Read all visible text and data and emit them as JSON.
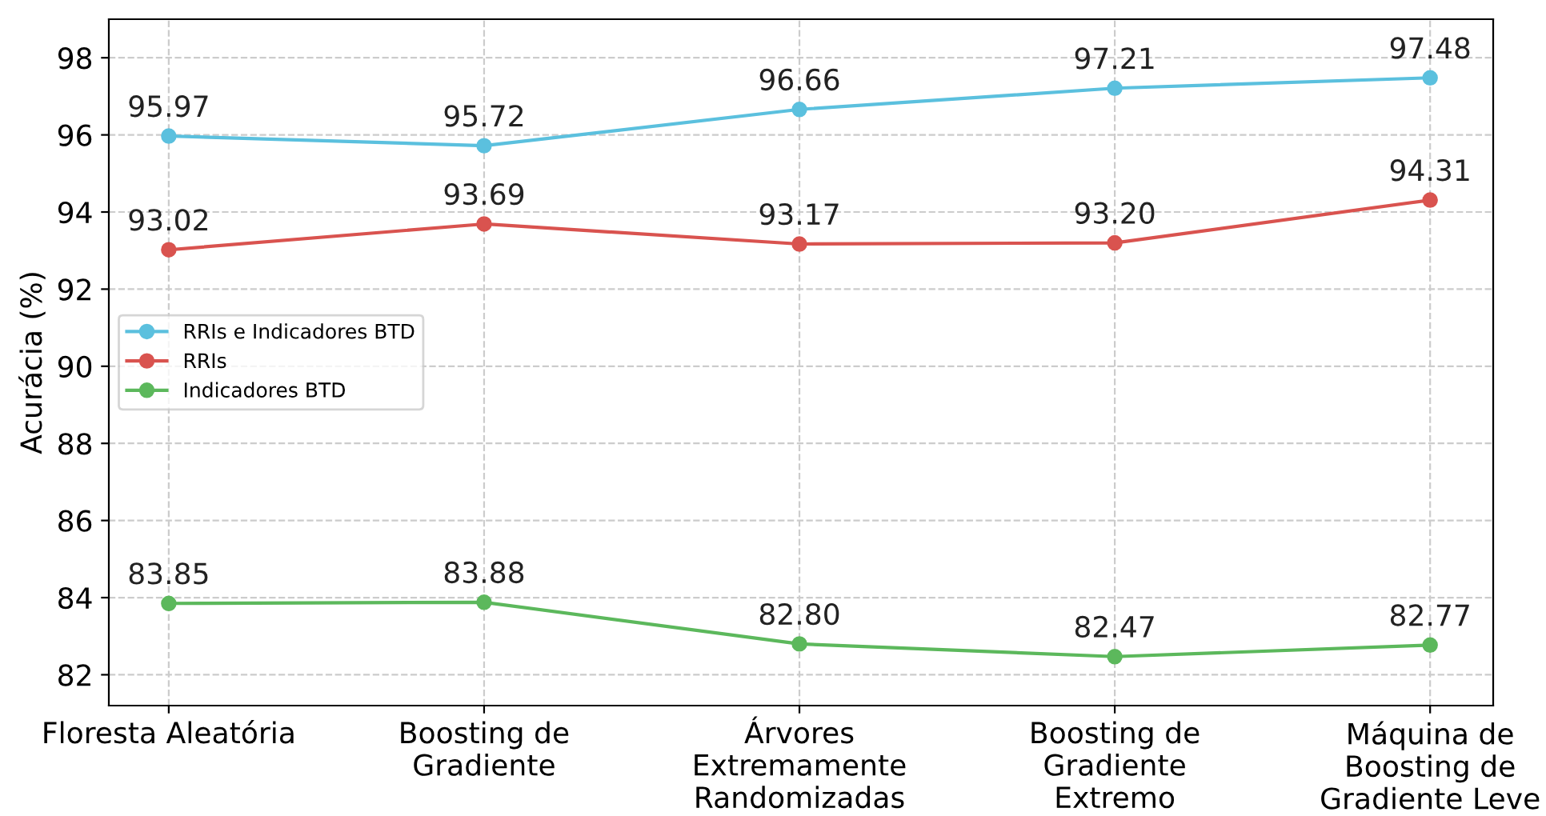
{
  "chart_data": {
    "type": "line",
    "ylabel": "Acurácia (%)",
    "categories": [
      "Floresta Aleatória",
      "Boosting de\nGradiente",
      "Árvores\nExtremamente\nRandomizadas",
      "Boosting de\nGradiente\nExtremo",
      "Máquina de\nBoosting de\nGradiente Leve"
    ],
    "series": [
      {
        "name": "RRIs e Indicadores BTD",
        "color": "#5bc0de",
        "values": [
          95.97,
          95.72,
          96.66,
          97.21,
          97.48
        ],
        "value_labels": [
          "95.97",
          "95.72",
          "96.66",
          "97.21",
          "97.48"
        ]
      },
      {
        "name": "RRIs",
        "color": "#d9534f",
        "values": [
          93.02,
          93.69,
          93.17,
          93.2,
          94.31
        ],
        "value_labels": [
          "93.02",
          "93.69",
          "93.17",
          "93.20",
          "94.31"
        ]
      },
      {
        "name": "Indicadores BTD",
        "color": "#5cb85c",
        "values": [
          83.85,
          83.88,
          82.8,
          82.47,
          82.77
        ],
        "value_labels": [
          "83.85",
          "83.88",
          "82.80",
          "82.47",
          "82.77"
        ]
      }
    ],
    "ylim": [
      81.2,
      99.0
    ],
    "yticks": [
      82,
      84,
      86,
      88,
      90,
      92,
      94,
      96,
      98
    ],
    "grid": true,
    "legend": "center left",
    "marker": "circle",
    "line_style": "solid"
  }
}
